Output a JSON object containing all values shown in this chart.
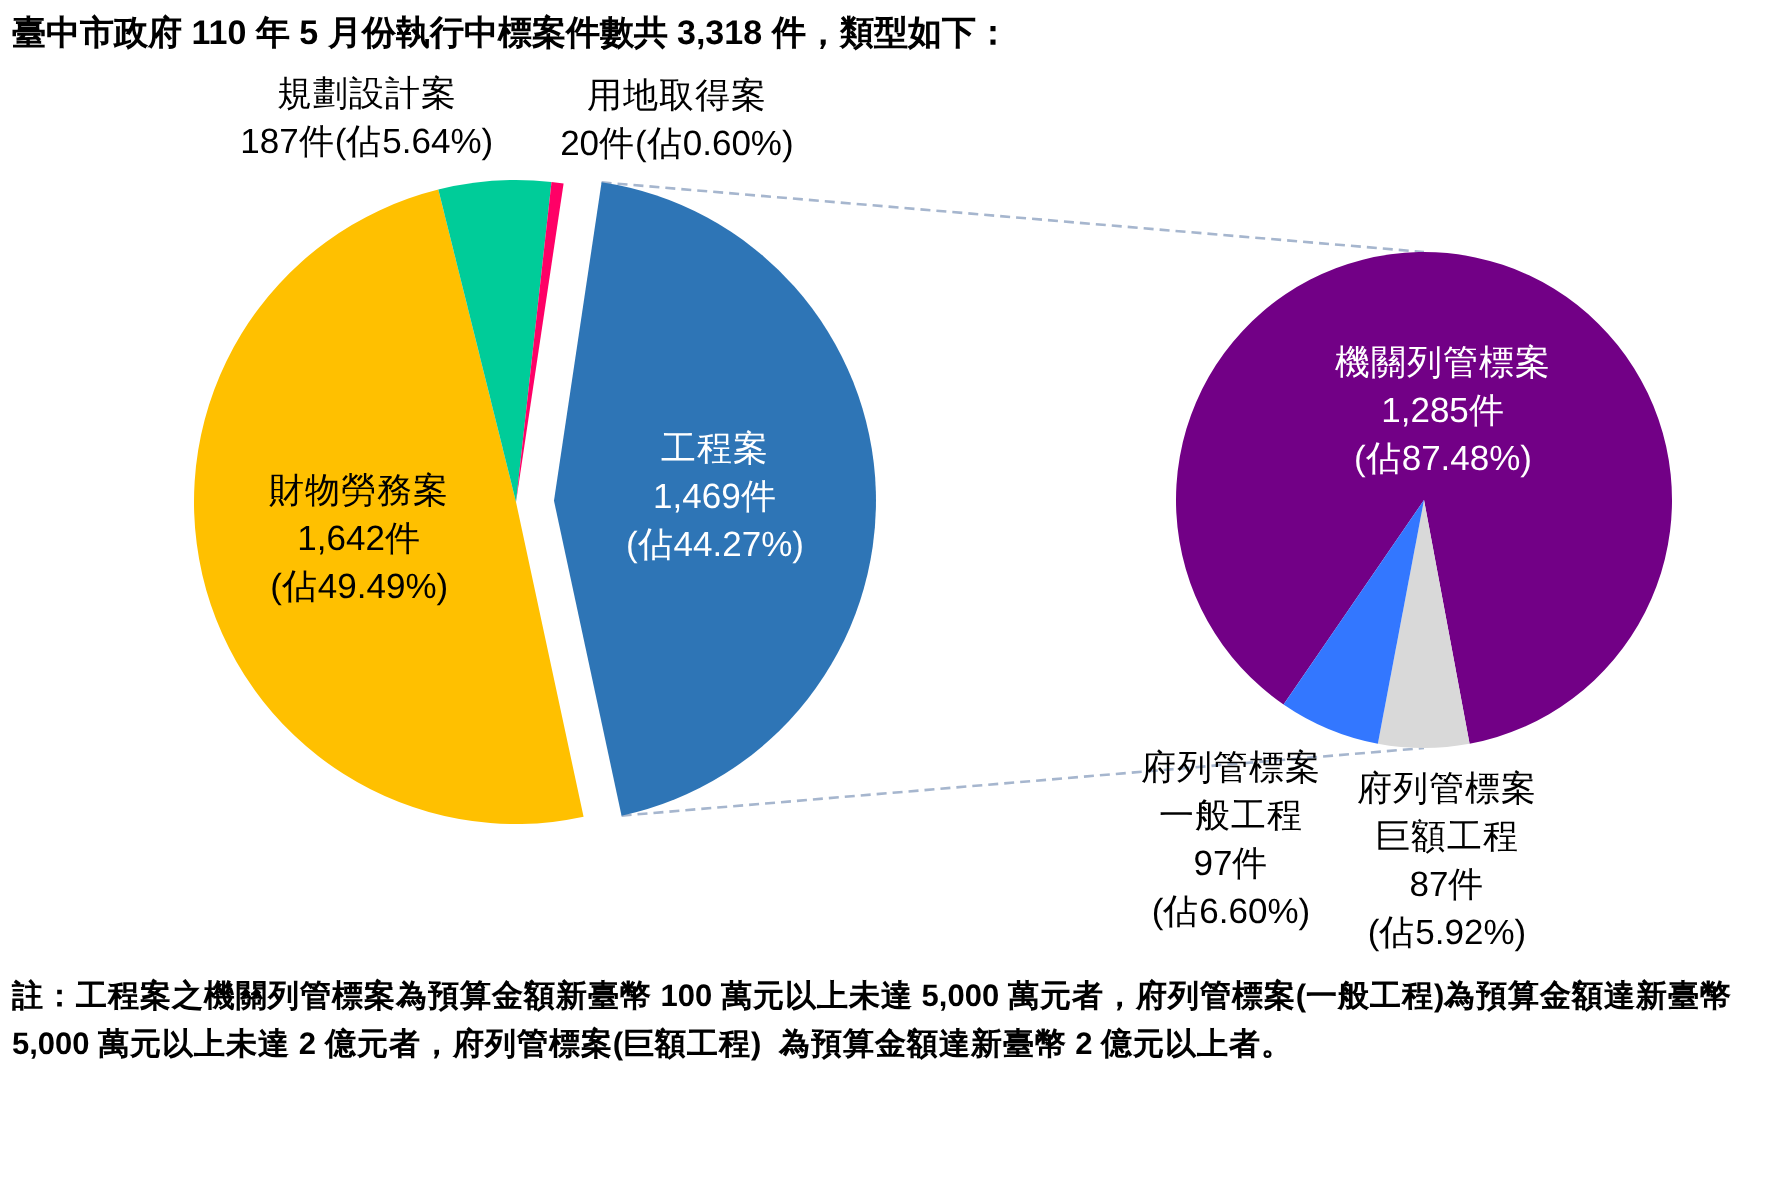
{
  "chart_data": [
    {
      "type": "pie",
      "title": "臺中市政府 110 年 5 月份執行中標案件數共 3,318 件，類型如下：",
      "categories": [
        "工程案",
        "財物勞務案",
        "規劃設計案",
        "用地取得案"
      ],
      "values": [
        1469,
        1642,
        187,
        20
      ],
      "colors": [
        "#2e75b6",
        "#ffc000",
        "#00cc99",
        "#ff0066"
      ],
      "value_labels": [
        "1,469件\n(佔44.27%)",
        "1,642件\n(佔49.49%)",
        "187件(佔5.64%)",
        "20件(佔0.60%)"
      ]
    },
    {
      "type": "pie",
      "categories": [
        "機關列管標案",
        "府列管標案巨額工程",
        "府列管標案一般工程"
      ],
      "values": [
        1285,
        87,
        97
      ],
      "colors": [
        "#720086",
        "#d9d9d9",
        "#3377ff"
      ],
      "value_labels": [
        "1,285件\n(佔87.48%)",
        "87件\n(佔5.92%)",
        "97件\n(佔6.60%)"
      ],
      "annotations": [
        "註：工程案之機關列管標案為預算金額新臺幣 100 萬元以上未達 5,000 萬元者，府列管標案(一般工程)為預算金額達新臺幣 5,000 萬元以上未達 2 億元者，府列管標案(巨額工程)  為預算金額達新臺幣 2 億元以上者。"
      ]
    }
  ]
}
